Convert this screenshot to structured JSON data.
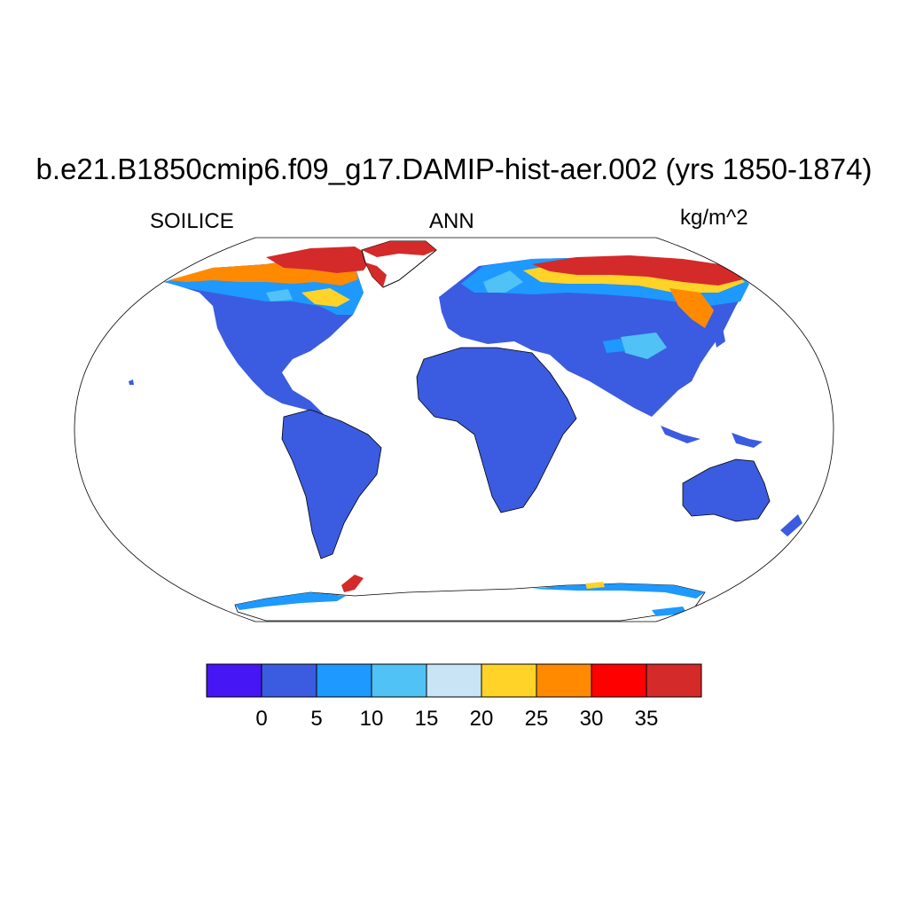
{
  "title": "b.e21.B1850cmip6.f09_g17.DAMIP-hist-aer.002 (yrs 1850-1874)",
  "left_label": "SOILICE",
  "center_label": "ANN",
  "units": "kg/m^2",
  "colorbar": {
    "colors": [
      "#4616f5",
      "#3b5ce0",
      "#1e99ff",
      "#50c2f5",
      "#c8e4f5",
      "#ffd328",
      "#ff8a00",
      "#ff0000",
      "#d42a2a"
    ],
    "tick_labels": [
      "0",
      "5",
      "10",
      "15",
      "20",
      "25",
      "30",
      "35"
    ]
  },
  "map_colors": {
    "land_low": "#3b5ce0",
    "ocean": "#ffffff",
    "outline": "#000000"
  }
}
